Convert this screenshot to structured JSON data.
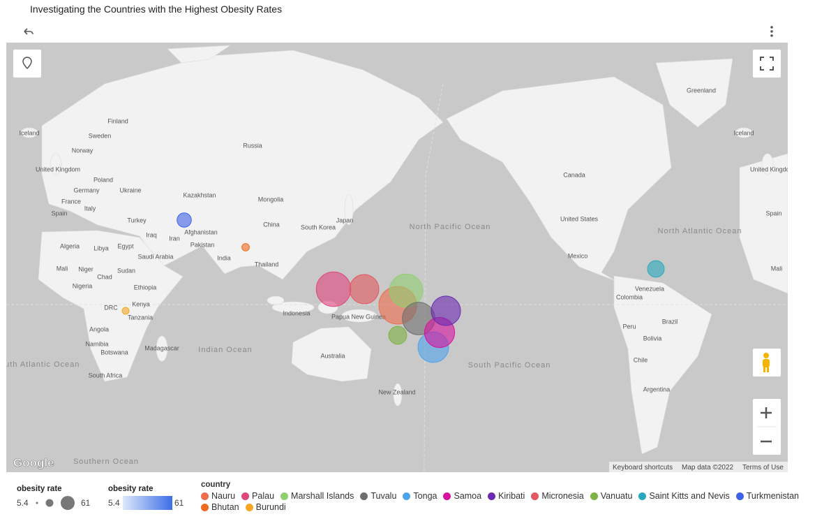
{
  "chart_data": {
    "type": "bubble_map",
    "title": "Investigating the Countries with the Highest Obesity Rates",
    "series": [
      {
        "name": "Nauru",
        "color": "#ee6c4d",
        "value": 61
      },
      {
        "name": "Palau",
        "color": "#e0457b",
        "value": 55.3
      },
      {
        "name": "Marshall Islands",
        "color": "#8fcf6f",
        "value": 52.9
      },
      {
        "name": "Tuvalu",
        "color": "#6f6f6f",
        "value": 51.6
      },
      {
        "name": "Tonga",
        "color": "#4ea4ea",
        "value": 48.2
      },
      {
        "name": "Samoa",
        "color": "#d6129e",
        "value": 47.3
      },
      {
        "name": "Kiribati",
        "color": "#6a2ab1",
        "value": 46
      },
      {
        "name": "Micronesia",
        "color": "#e2585f",
        "value": 45.8
      },
      {
        "name": "Vanuatu",
        "color": "#7cb342",
        "value": 25.2
      },
      {
        "name": "Saint Kitts and Nevis",
        "color": "#26a9bc",
        "value": 22.9
      },
      {
        "name": "Turkmenistan",
        "color": "#3d63e6",
        "value": 18.6
      },
      {
        "name": "Bhutan",
        "color": "#ee6a1f",
        "value": 6.4
      },
      {
        "name": "Burundi",
        "color": "#f5a623",
        "value": 5.4
      }
    ],
    "size_legend": {
      "title": "obesity rate",
      "min": 5.4,
      "max": 61
    },
    "color_legend": {
      "title": "obesity rate",
      "min": 5.4,
      "max": 61
    },
    "legend_title": "country",
    "map_labels": [
      "Finland",
      "Sweden",
      "Iceland",
      "Norway",
      "United Kingdom",
      "Poland",
      "Germany",
      "Ukraine",
      "France",
      "Italy",
      "Spain",
      "Russia",
      "Kazakhstan",
      "Mongolia",
      "Turkey",
      "Iraq",
      "Iran",
      "Afghanistan",
      "Pakistan",
      "China",
      "South Korea",
      "Japan",
      "India",
      "Thailand",
      "Algeria",
      "Libya",
      "Egypt",
      "Saudi Arabia",
      "Mali",
      "Niger",
      "Sudan",
      "Chad",
      "Nigeria",
      "Ethiopia",
      "DRC",
      "Kenya",
      "Tanzania",
      "Angola",
      "Namibia",
      "Botswana",
      "Madagascar",
      "South Africa",
      "Indonesia",
      "Papua New Guinea",
      "Australia",
      "New Zealand",
      "Greenland",
      "Iceland",
      "Canada",
      "United States",
      "Mexico",
      "Venezuela",
      "Colombia",
      "Peru",
      "Brazil",
      "Bolivia",
      "Chile",
      "Argentina",
      "United Kingdom",
      "Spain",
      "Mali"
    ],
    "ocean_labels": [
      "Indian Ocean",
      "South Atlantic Ocean",
      "Southern Ocean",
      "North Pacific Ocean",
      "South Pacific Ocean",
      "North Atlantic Ocean"
    ],
    "attribution": {
      "logo": "Google",
      "shortcuts": "Keyboard shortcuts",
      "map_data": "Map data ©2022",
      "terms": "Terms of Use"
    }
  }
}
